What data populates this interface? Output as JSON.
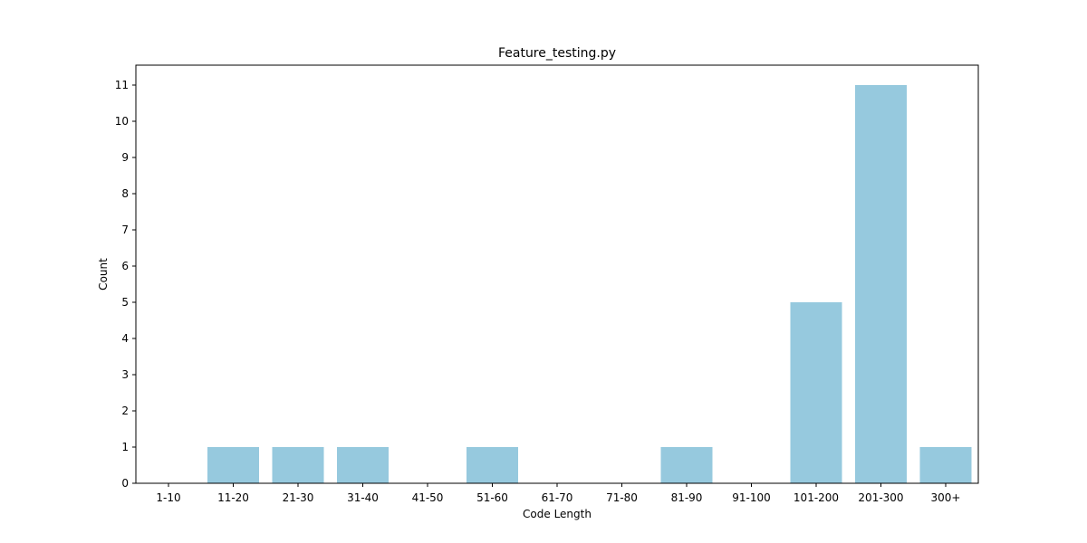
{
  "chart_data": {
    "type": "bar",
    "title": "Feature_testing.py",
    "xlabel": "Code Length",
    "ylabel": "Count",
    "categories": [
      "1-10",
      "11-20",
      "21-30",
      "31-40",
      "41-50",
      "51-60",
      "61-70",
      "71-80",
      "81-90",
      "91-100",
      "101-200",
      "201-300",
      "300+"
    ],
    "values": [
      0,
      1,
      1,
      1,
      0,
      1,
      0,
      0,
      1,
      0,
      5,
      11,
      1
    ],
    "yticks": [
      "0",
      "1",
      "2",
      "3",
      "4",
      "5",
      "6",
      "7",
      "8",
      "9",
      "10",
      "11"
    ],
    "ylim": [
      0,
      11.55
    ],
    "grid": false,
    "bar_color": "#96c9de"
  }
}
